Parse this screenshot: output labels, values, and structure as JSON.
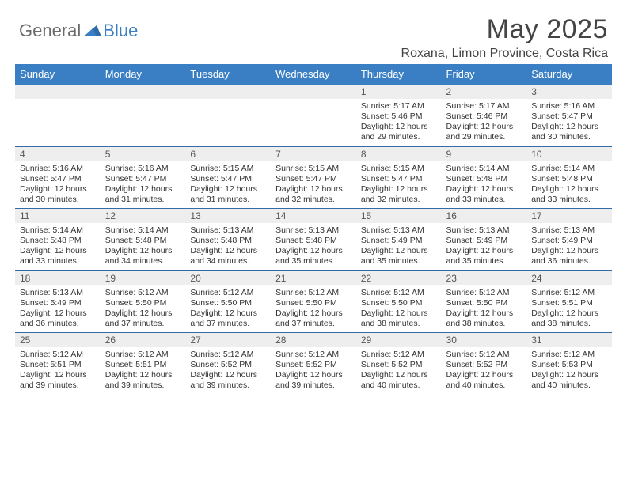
{
  "brand": {
    "general": "General",
    "blue": "Blue"
  },
  "title": "May 2025",
  "location": "Roxana, Limon Province, Costa Rica",
  "colors": {
    "header_bg": "#3a7fc4",
    "header_text": "#ffffff",
    "daynum_bg": "#eeeeee",
    "row_border": "#2f6ca8",
    "body_text": "#333333",
    "logo_gray": "#6b6b6b",
    "logo_blue": "#3a7fc4"
  },
  "day_headers": [
    "Sunday",
    "Monday",
    "Tuesday",
    "Wednesday",
    "Thursday",
    "Friday",
    "Saturday"
  ],
  "weeks": [
    [
      null,
      null,
      null,
      null,
      {
        "n": "1",
        "sr": "5:17 AM",
        "ss": "5:46 PM",
        "dl": "12 hours and 29 minutes."
      },
      {
        "n": "2",
        "sr": "5:17 AM",
        "ss": "5:46 PM",
        "dl": "12 hours and 29 minutes."
      },
      {
        "n": "3",
        "sr": "5:16 AM",
        "ss": "5:47 PM",
        "dl": "12 hours and 30 minutes."
      }
    ],
    [
      {
        "n": "4",
        "sr": "5:16 AM",
        "ss": "5:47 PM",
        "dl": "12 hours and 30 minutes."
      },
      {
        "n": "5",
        "sr": "5:16 AM",
        "ss": "5:47 PM",
        "dl": "12 hours and 31 minutes."
      },
      {
        "n": "6",
        "sr": "5:15 AM",
        "ss": "5:47 PM",
        "dl": "12 hours and 31 minutes."
      },
      {
        "n": "7",
        "sr": "5:15 AM",
        "ss": "5:47 PM",
        "dl": "12 hours and 32 minutes."
      },
      {
        "n": "8",
        "sr": "5:15 AM",
        "ss": "5:47 PM",
        "dl": "12 hours and 32 minutes."
      },
      {
        "n": "9",
        "sr": "5:14 AM",
        "ss": "5:48 PM",
        "dl": "12 hours and 33 minutes."
      },
      {
        "n": "10",
        "sr": "5:14 AM",
        "ss": "5:48 PM",
        "dl": "12 hours and 33 minutes."
      }
    ],
    [
      {
        "n": "11",
        "sr": "5:14 AM",
        "ss": "5:48 PM",
        "dl": "12 hours and 33 minutes."
      },
      {
        "n": "12",
        "sr": "5:14 AM",
        "ss": "5:48 PM",
        "dl": "12 hours and 34 minutes."
      },
      {
        "n": "13",
        "sr": "5:13 AM",
        "ss": "5:48 PM",
        "dl": "12 hours and 34 minutes."
      },
      {
        "n": "14",
        "sr": "5:13 AM",
        "ss": "5:48 PM",
        "dl": "12 hours and 35 minutes."
      },
      {
        "n": "15",
        "sr": "5:13 AM",
        "ss": "5:49 PM",
        "dl": "12 hours and 35 minutes."
      },
      {
        "n": "16",
        "sr": "5:13 AM",
        "ss": "5:49 PM",
        "dl": "12 hours and 35 minutes."
      },
      {
        "n": "17",
        "sr": "5:13 AM",
        "ss": "5:49 PM",
        "dl": "12 hours and 36 minutes."
      }
    ],
    [
      {
        "n": "18",
        "sr": "5:13 AM",
        "ss": "5:49 PM",
        "dl": "12 hours and 36 minutes."
      },
      {
        "n": "19",
        "sr": "5:12 AM",
        "ss": "5:50 PM",
        "dl": "12 hours and 37 minutes."
      },
      {
        "n": "20",
        "sr": "5:12 AM",
        "ss": "5:50 PM",
        "dl": "12 hours and 37 minutes."
      },
      {
        "n": "21",
        "sr": "5:12 AM",
        "ss": "5:50 PM",
        "dl": "12 hours and 37 minutes."
      },
      {
        "n": "22",
        "sr": "5:12 AM",
        "ss": "5:50 PM",
        "dl": "12 hours and 38 minutes."
      },
      {
        "n": "23",
        "sr": "5:12 AM",
        "ss": "5:50 PM",
        "dl": "12 hours and 38 minutes."
      },
      {
        "n": "24",
        "sr": "5:12 AM",
        "ss": "5:51 PM",
        "dl": "12 hours and 38 minutes."
      }
    ],
    [
      {
        "n": "25",
        "sr": "5:12 AM",
        "ss": "5:51 PM",
        "dl": "12 hours and 39 minutes."
      },
      {
        "n": "26",
        "sr": "5:12 AM",
        "ss": "5:51 PM",
        "dl": "12 hours and 39 minutes."
      },
      {
        "n": "27",
        "sr": "5:12 AM",
        "ss": "5:52 PM",
        "dl": "12 hours and 39 minutes."
      },
      {
        "n": "28",
        "sr": "5:12 AM",
        "ss": "5:52 PM",
        "dl": "12 hours and 39 minutes."
      },
      {
        "n": "29",
        "sr": "5:12 AM",
        "ss": "5:52 PM",
        "dl": "12 hours and 40 minutes."
      },
      {
        "n": "30",
        "sr": "5:12 AM",
        "ss": "5:52 PM",
        "dl": "12 hours and 40 minutes."
      },
      {
        "n": "31",
        "sr": "5:12 AM",
        "ss": "5:53 PM",
        "dl": "12 hours and 40 minutes."
      }
    ]
  ],
  "labels": {
    "sunrise": "Sunrise:",
    "sunset": "Sunset:",
    "daylight": "Daylight:"
  }
}
